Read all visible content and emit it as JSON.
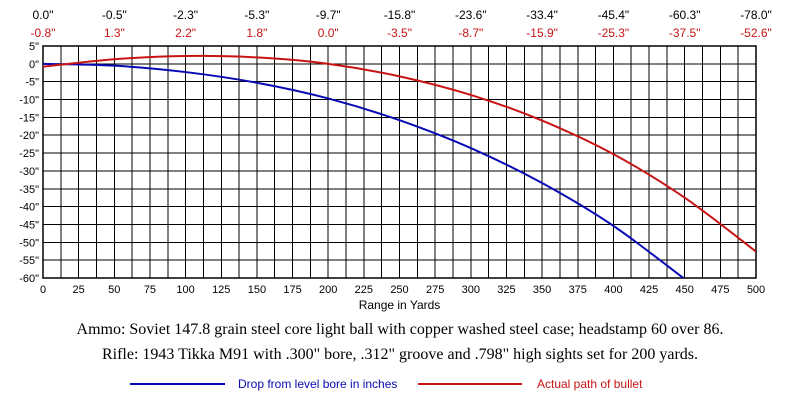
{
  "chart_data": {
    "type": "line",
    "xlabel": "Range in Yards",
    "xlim": [
      0,
      500
    ],
    "ylim": [
      -60,
      5
    ],
    "x_ticks": [
      "0",
      "25",
      "50",
      "75",
      "100",
      "125",
      "150",
      "175",
      "200",
      "225",
      "250",
      "275",
      "300",
      "325",
      "350",
      "375",
      "400",
      "425",
      "450",
      "475",
      "500"
    ],
    "y_ticks": [
      "5\"",
      "0\"",
      "-5\"",
      "-10\"",
      "-15\"",
      "-20\"",
      "-25\"",
      "-30\"",
      "-35\"",
      "-40\"",
      "-45\"",
      "-50\"",
      "-55\"",
      "-60\""
    ],
    "grid": true,
    "top_labels": {
      "x": [
        0,
        50,
        100,
        150,
        200,
        250,
        300,
        350,
        400,
        450,
        500
      ],
      "drop": [
        "0.0\"",
        "-0.5\"",
        "-2.3\"",
        "-5.3\"",
        "-9.7\"",
        "-15.8\"",
        "-23.6\"",
        "-33.4\"",
        "-45.4\"",
        "-60.3\"",
        "-78.0\""
      ],
      "path": [
        "-0.8\"",
        "1.3\"",
        "2.2\"",
        "1.8\"",
        "0.0\"",
        "-3.5\"",
        "-8.7\"",
        "-15.9\"",
        "-25.3\"",
        "-37.5\"",
        "-52.6\""
      ]
    },
    "series": [
      {
        "name": "Drop from level bore in inches",
        "color": "#0a0ab4",
        "x": [
          0,
          50,
          100,
          150,
          200,
          250,
          300,
          350,
          400,
          450
        ],
        "y": [
          0.0,
          -0.5,
          -2.3,
          -5.3,
          -9.7,
          -15.8,
          -23.6,
          -33.4,
          -45.4,
          -60.3
        ]
      },
      {
        "name": "Actual path of bullet",
        "color": "#c81414",
        "x": [
          0,
          50,
          100,
          150,
          200,
          250,
          300,
          350,
          400,
          450,
          500
        ],
        "y": [
          -0.8,
          1.3,
          2.2,
          1.8,
          0.0,
          -3.5,
          -8.7,
          -15.9,
          -25.3,
          -37.5,
          -52.6
        ]
      }
    ]
  },
  "captions": {
    "ammo": "Ammo:  Soviet 147.8 grain steel core light ball with copper washed steel case; headstamp 60 over 86.",
    "rifle": "Rifle:  1943 Tikka M91 with .300\" bore, .312\" groove and .798\" high sights set for 200 yards."
  }
}
